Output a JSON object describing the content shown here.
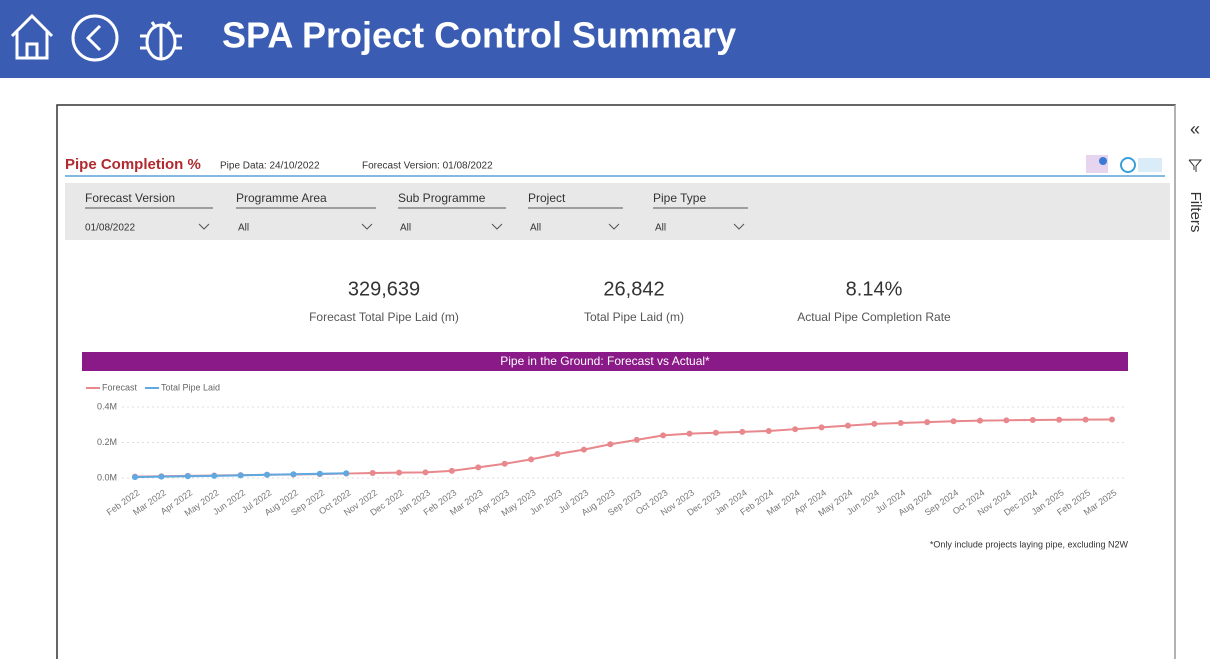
{
  "header": {
    "title": "SPA Project Control Summary"
  },
  "report": {
    "title": "Pipe Completion %",
    "pipe_data": "Pipe Data: 24/10/2022",
    "forecast_version": "Forecast Version: 01/08/2022",
    "filters": [
      {
        "label": "Forecast Version",
        "value": "01/08/2022"
      },
      {
        "label": "Programme Area",
        "value": "All"
      },
      {
        "label": "Sub Programme",
        "value": "All"
      },
      {
        "label": "Project",
        "value": "All"
      },
      {
        "label": "Pipe Type",
        "value": "All"
      }
    ],
    "kpis": [
      {
        "value": "329,639",
        "label": "Forecast Total Pipe Laid (m)"
      },
      {
        "value": "26,842",
        "label": "Total Pipe Laid (m)"
      },
      {
        "value": "8.14%",
        "label": "Actual Pipe Completion Rate"
      }
    ],
    "note": "*Only include projects laying pipe, excluding N2W"
  },
  "filters_pane": {
    "title": "Filters"
  },
  "chart_data": {
    "type": "line",
    "title": "Pipe in the Ground: Forecast vs Actual*",
    "categories": [
      "Feb 2022",
      "Mar 2022",
      "Apr 2022",
      "May 2022",
      "Jun 2022",
      "Jul 2022",
      "Aug 2022",
      "Sep 2022",
      "Oct 2022",
      "Nov 2022",
      "Dec 2022",
      "Jan 2023",
      "Feb 2023",
      "Mar 2023",
      "Apr 2023",
      "May 2023",
      "Jun 2023",
      "Jul 2023",
      "Aug 2023",
      "Sep 2023",
      "Oct 2023",
      "Nov 2023",
      "Dec 2023",
      "Jan 2024",
      "Feb 2024",
      "Mar 2024",
      "Apr 2024",
      "May 2024",
      "Jun 2024",
      "Jul 2024",
      "Aug 2024",
      "Sep 2024",
      "Oct 2024",
      "Nov 2024",
      "Dec 2024",
      "Jan 2025",
      "Feb 2025",
      "Mar 2025"
    ],
    "series": [
      {
        "name": "Forecast",
        "color": "#e8878c",
        "values": [
          8000,
          10000,
          12000,
          14000,
          16000,
          18000,
          20000,
          22000,
          25000,
          28000,
          30000,
          32000,
          40000,
          60000,
          80000,
          105000,
          135000,
          160000,
          190000,
          215000,
          240000,
          250000,
          255000,
          260000,
          265000,
          275000,
          285000,
          295000,
          305000,
          310000,
          315000,
          320000,
          323000,
          325000,
          327000,
          328000,
          329000,
          329639
        ]
      },
      {
        "name": "Total Pipe Laid",
        "color": "#5fa8e0",
        "values": [
          5000,
          8000,
          10000,
          12000,
          15000,
          18000,
          21000,
          24000,
          26842,
          null,
          null,
          null,
          null,
          null,
          null,
          null,
          null,
          null,
          null,
          null,
          null,
          null,
          null,
          null,
          null,
          null,
          null,
          null,
          null,
          null,
          null,
          null,
          null,
          null,
          null,
          null,
          null,
          null
        ]
      }
    ],
    "ylim": [
      0,
      400000
    ],
    "yticks": [
      {
        "value": 0,
        "label": "0.0M"
      },
      {
        "value": 200000,
        "label": "0.2M"
      },
      {
        "value": 400000,
        "label": "0.4M"
      }
    ],
    "grid": true
  }
}
